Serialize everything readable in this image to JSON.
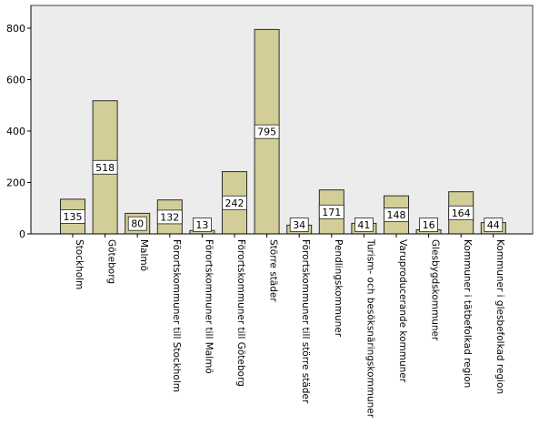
{
  "chart_data": {
    "type": "bar",
    "categories": [
      "Stockholm",
      "Göteborg",
      "Malmö",
      "Förortskommuner till Stockholm",
      "Förortskommuner till Malmö",
      "Förortskommuner till Göteborg",
      "Större städer",
      "Förortskommuner till större städer",
      "Pendlingskommuner",
      "Turism- och besöksnäringskommuner",
      "Varuproducerande kommuner",
      "Glesbygdskommuner",
      "Kommuner i tätbefolkad region",
      "Kommuner i glesbefolkad region"
    ],
    "values": [
      135,
      518,
      80,
      132,
      13,
      242,
      795,
      34,
      171,
      41,
      148,
      16,
      164,
      44
    ],
    "data_labels": [
      "135",
      "518",
      "80",
      "132",
      "13",
      "242",
      "795",
      "34",
      "171",
      "41",
      "148",
      "16",
      "164",
      "44"
    ],
    "y_ticks": [
      0,
      200,
      400,
      600,
      800
    ],
    "y_tick_labels": [
      "0",
      "200",
      "400",
      "600",
      "800"
    ],
    "ylim": [
      0,
      860
    ],
    "grid": false,
    "colors": {
      "plot_background": "#ececec",
      "bar_fill": "#d3ce98",
      "bar_stroke": "#2a2a2a",
      "axis": "#000000"
    }
  }
}
